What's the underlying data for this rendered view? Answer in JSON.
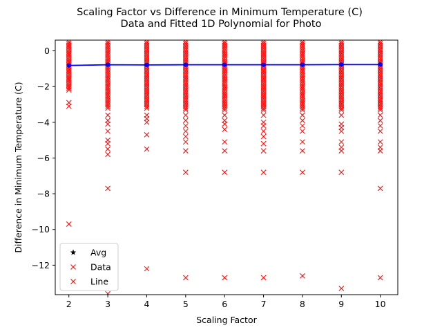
{
  "chart_data": {
    "type": "scatter",
    "title": "Scaling Factor vs Difference in Minimum Temperature (C)",
    "subtitle": "Data and Fitted 1D Polynomial for Photo",
    "xlabel": "Scaling Factor",
    "ylabel": "Difference in Minimum Temperature (C)",
    "xlim": [
      1.65,
      10.45
    ],
    "ylim": [
      -13.65,
      0.6
    ],
    "xticks": [
      2,
      3,
      4,
      5,
      6,
      7,
      8,
      9,
      10
    ],
    "yticks": [
      0,
      -2,
      -4,
      -6,
      -8,
      -10,
      -12
    ],
    "grid": false,
    "legend": {
      "placement": "lower-left",
      "entries": [
        {
          "label": "Avg",
          "marker": "star",
          "color": "#000000"
        },
        {
          "label": "Data",
          "marker": "x",
          "color": "#ff0000"
        },
        {
          "label": "Line",
          "marker": "x",
          "color": "#ff0000"
        }
      ]
    },
    "series": [
      {
        "name": "Data",
        "marker": "x",
        "color": "#ff0000",
        "dense_band": [
          {
            "x": 2,
            "from": 0.5,
            "to": -2.2
          },
          {
            "x": 3,
            "from": 0.5,
            "to": -3.3
          },
          {
            "x": 4,
            "from": 0.5,
            "to": -3.3
          },
          {
            "x": 5,
            "from": 0.5,
            "to": -3.4
          },
          {
            "x": 6,
            "from": 0.5,
            "to": -3.4
          },
          {
            "x": 7,
            "from": 0.5,
            "to": -3.4
          },
          {
            "x": 8,
            "from": 0.5,
            "to": -3.4
          },
          {
            "x": 9,
            "from": 0.5,
            "to": -3.4
          },
          {
            "x": 10,
            "from": 0.5,
            "to": -3.4
          }
        ],
        "points": [
          [
            2,
            -2.9
          ],
          [
            2,
            -3.1
          ],
          [
            2,
            -9.7
          ],
          [
            3,
            -3.6
          ],
          [
            3,
            -3.9
          ],
          [
            3,
            -4.1
          ],
          [
            3,
            -4.5
          ],
          [
            3,
            -5.0
          ],
          [
            3,
            -5.2
          ],
          [
            3,
            -5.5
          ],
          [
            3,
            -5.8
          ],
          [
            3,
            -7.7
          ],
          [
            3,
            -13.6
          ],
          [
            4,
            -3.6
          ],
          [
            4,
            -3.8
          ],
          [
            4,
            -4.0
          ],
          [
            4,
            -4.7
          ],
          [
            4,
            -5.5
          ],
          [
            4,
            -12.2
          ],
          [
            5,
            -3.6
          ],
          [
            5,
            -3.9
          ],
          [
            5,
            -4.2
          ],
          [
            5,
            -4.5
          ],
          [
            5,
            -4.8
          ],
          [
            5,
            -5.1
          ],
          [
            5,
            -5.6
          ],
          [
            5,
            -6.8
          ],
          [
            5,
            -12.7
          ],
          [
            6,
            -3.6
          ],
          [
            6,
            -3.9
          ],
          [
            6,
            -4.1
          ],
          [
            6,
            -4.4
          ],
          [
            6,
            -5.1
          ],
          [
            6,
            -5.6
          ],
          [
            6,
            -6.8
          ],
          [
            6,
            -12.7
          ],
          [
            7,
            -3.6
          ],
          [
            7,
            -4.0
          ],
          [
            7,
            -4.2
          ],
          [
            7,
            -4.5
          ],
          [
            7,
            -4.8
          ],
          [
            7,
            -5.2
          ],
          [
            7,
            -5.6
          ],
          [
            7,
            -6.8
          ],
          [
            7,
            -12.7
          ],
          [
            8,
            -3.6
          ],
          [
            8,
            -3.9
          ],
          [
            8,
            -4.2
          ],
          [
            8,
            -4.5
          ],
          [
            8,
            -5.1
          ],
          [
            8,
            -5.6
          ],
          [
            8,
            -6.8
          ],
          [
            8,
            -12.6
          ],
          [
            9,
            -3.6
          ],
          [
            9,
            -4.1
          ],
          [
            9,
            -4.3
          ],
          [
            9,
            -4.5
          ],
          [
            9,
            -5.1
          ],
          [
            9,
            -5.4
          ],
          [
            9,
            -5.6
          ],
          [
            9,
            -6.8
          ],
          [
            9,
            -13.3
          ],
          [
            10,
            -3.6
          ],
          [
            10,
            -3.9
          ],
          [
            10,
            -4.2
          ],
          [
            10,
            -4.5
          ],
          [
            10,
            -5.1
          ],
          [
            10,
            -5.4
          ],
          [
            10,
            -5.6
          ],
          [
            10,
            -7.7
          ],
          [
            10,
            -12.7
          ]
        ]
      },
      {
        "name": "Line",
        "type": "line",
        "marker": "circle",
        "color": "#0000ff",
        "x": [
          2,
          3,
          4,
          5,
          6,
          7,
          8,
          9,
          10
        ],
        "values": [
          -0.82,
          -0.78,
          -0.79,
          -0.78,
          -0.78,
          -0.78,
          -0.78,
          -0.77,
          -0.77
        ]
      }
    ]
  }
}
